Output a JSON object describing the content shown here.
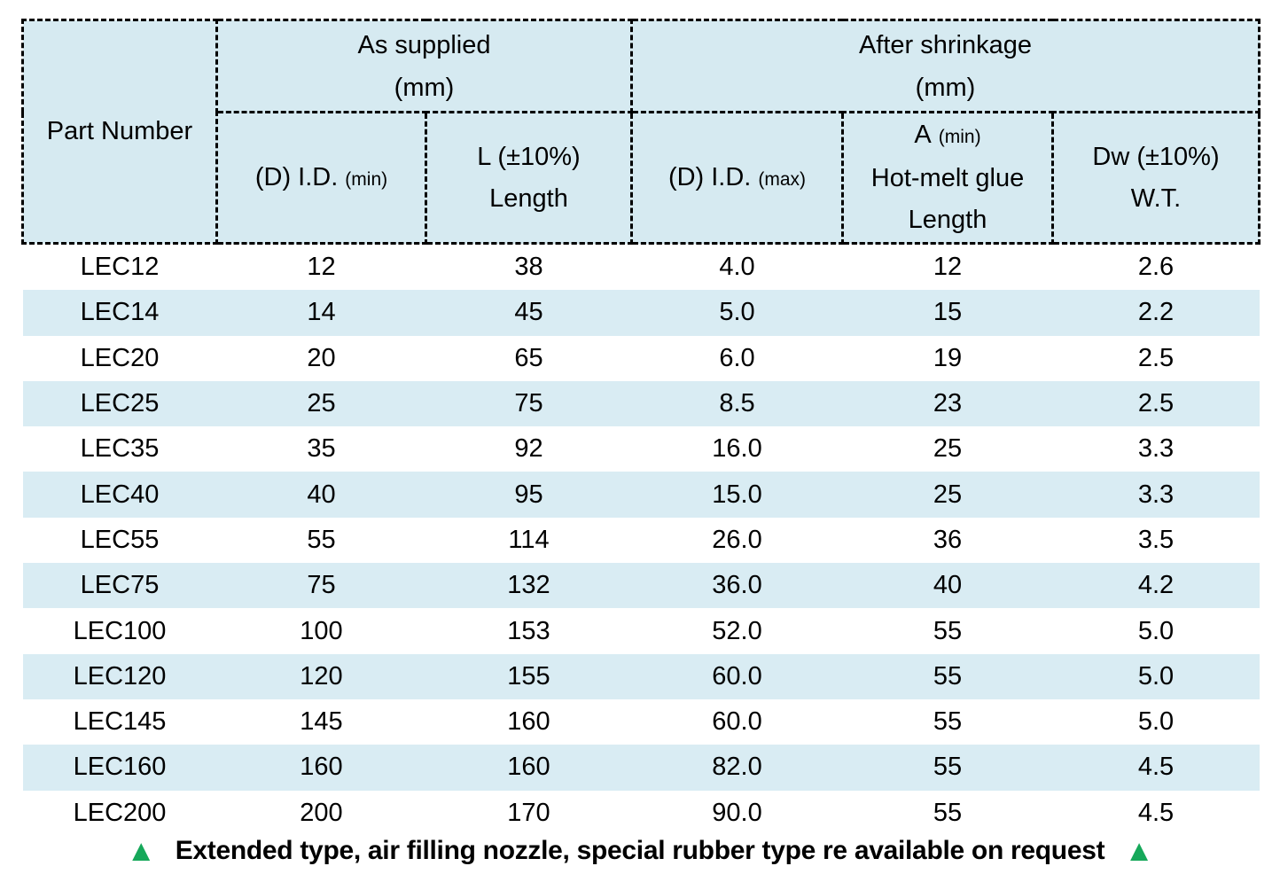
{
  "chart_data": {
    "type": "table",
    "columns": [
      "Part Number",
      "(D) I.D. (min)",
      "L (±10%) Length",
      "(D) I.D. (max)",
      "A (min) Hot-melt glue Length",
      "Dw (±10%) W.T."
    ],
    "column_groups": [
      {
        "label": "As supplied",
        "unit": "(mm)",
        "columns": [
          "(D) I.D. (min)",
          "L (±10%) Length"
        ]
      },
      {
        "label": "After shrinkage",
        "unit": "(mm)",
        "columns": [
          "(D) I.D. (max)",
          "A (min) Hot-melt glue Length",
          "Dw (±10%) W.T."
        ]
      }
    ],
    "rows": [
      [
        "LEC12",
        "12",
        "38",
        "4.0",
        "12",
        "2.6"
      ],
      [
        "LEC14",
        "14",
        "45",
        "5.0",
        "15",
        "2.2"
      ],
      [
        "LEC20",
        "20",
        "65",
        "6.0",
        "19",
        "2.5"
      ],
      [
        "LEC25",
        "25",
        "75",
        "8.5",
        "23",
        "2.5"
      ],
      [
        "LEC35",
        "35",
        "92",
        "16.0",
        "25",
        "3.3"
      ],
      [
        "LEC40",
        "40",
        "95",
        "15.0",
        "25",
        "3.3"
      ],
      [
        "LEC55",
        "55",
        "114",
        "26.0",
        "36",
        "3.5"
      ],
      [
        "LEC75",
        "75",
        "132",
        "36.0",
        "40",
        "4.2"
      ],
      [
        "LEC100",
        "100",
        "153",
        "52.0",
        "55",
        "5.0"
      ],
      [
        "LEC120",
        "120",
        "155",
        "60.0",
        "55",
        "5.0"
      ],
      [
        "LEC145",
        "145",
        "160",
        "60.0",
        "55",
        "5.0"
      ],
      [
        "LEC160",
        "160",
        "160",
        "82.0",
        "55",
        "4.5"
      ],
      [
        "LEC200",
        "200",
        "170",
        "90.0",
        "55",
        "4.5"
      ]
    ],
    "layout": {
      "grid": false,
      "zebra_striping": true,
      "header_border_style": "dash-dot"
    }
  },
  "header": {
    "part_number": "Part Number",
    "as_supplied": {
      "title": "As supplied",
      "unit": "(mm)"
    },
    "after_shrinkage": {
      "title": "After shrinkage",
      "unit": "(mm)"
    },
    "id_min": {
      "main": "(D) I.D.",
      "qualifier": "(min)"
    },
    "length": {
      "line1": "L (±10%)",
      "line2": "Length"
    },
    "id_max": {
      "main": "(D) I.D.",
      "qualifier": "(max)"
    },
    "glue": {
      "main": "A",
      "qualifier": "(min)",
      "line2": "Hot-melt glue",
      "line3": "Length"
    },
    "wt": {
      "line1": "Dw (±10%)",
      "line2": "W.T."
    }
  },
  "footer": {
    "note": "Extended type, air filling nozzle, special rubber type re available on request",
    "triangle_glyph": "▲"
  },
  "icons": {
    "triangle_up": "triangle-up-icon"
  },
  "colors": {
    "header_bg": "#d6eaf1",
    "stripe_bg": "#d9ecf3",
    "border": "#000000",
    "triangle_green": "#16a85a",
    "text": "#000000"
  }
}
